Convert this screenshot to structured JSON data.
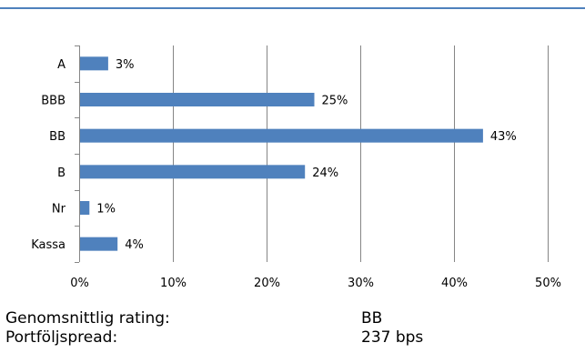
{
  "chart_data": {
    "type": "bar",
    "orientation": "horizontal",
    "categories": [
      "A",
      "BBB",
      "BB",
      "B",
      "Nr",
      "Kassa"
    ],
    "values": [
      3,
      25,
      43,
      24,
      1,
      4
    ],
    "data_labels": [
      "3%",
      "25%",
      "43%",
      "24%",
      "1%",
      "4%"
    ],
    "x_ticks": [
      0,
      10,
      20,
      30,
      40,
      50
    ],
    "x_tick_labels": [
      "0%",
      "10%",
      "20%",
      "30%",
      "40%",
      "50%"
    ],
    "xlim": [
      0,
      50
    ],
    "grid": "vertical",
    "bar_color": "#4f81bd"
  },
  "summary": {
    "rating_label": "Genomsnittlig rating:",
    "rating_value": "BB",
    "spread_label": "Portföljspread:",
    "spread_value": "237 bps"
  },
  "colors": {
    "accent_rule": "#4f81bd",
    "gridline": "#868686"
  }
}
